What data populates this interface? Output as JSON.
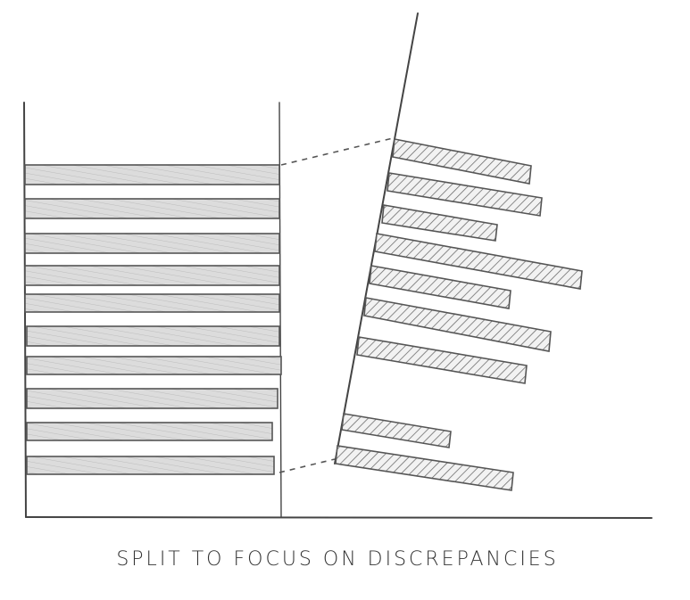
{
  "caption": "SPLIT TO FOCUS ON DISCREPANCIES"
}
